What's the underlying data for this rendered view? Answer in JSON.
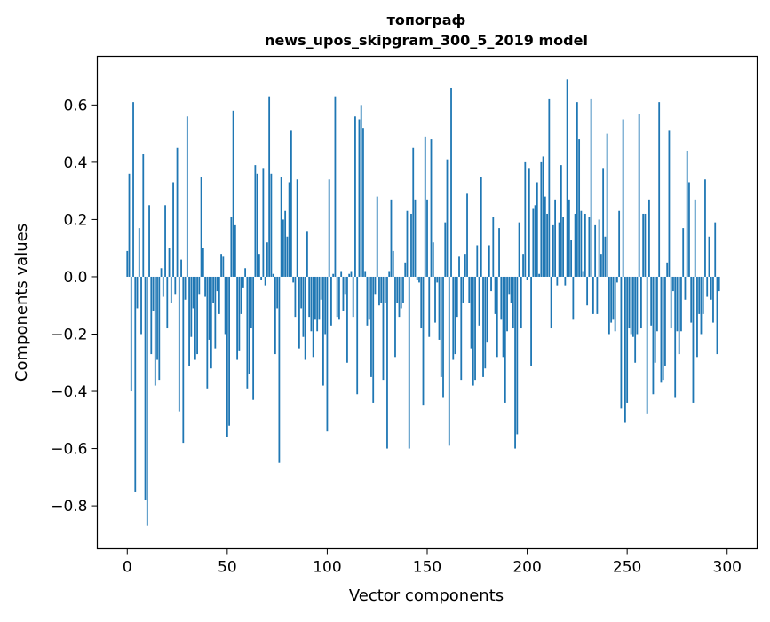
{
  "chart_data": {
    "type": "bar",
    "title_line1": "топограф",
    "title_line2": "news_upos_skipgram_300_5_2019 model",
    "xlabel": "Vector components",
    "ylabel": "Components values",
    "xlim": [
      -15,
      315
    ],
    "ylim": [
      -0.95,
      0.77
    ],
    "xticks": [
      0,
      50,
      100,
      150,
      200,
      250,
      300
    ],
    "xtick_labels": [
      "0",
      "50",
      "100",
      "150",
      "200",
      "250",
      "300"
    ],
    "yticks": [
      -0.8,
      -0.6,
      -0.4,
      -0.2,
      0.0,
      0.2,
      0.4,
      0.6
    ],
    "ytick_labels": [
      "−0.8",
      "−0.6",
      "−0.4",
      "−0.2",
      "0.0",
      "0.2",
      "0.4",
      "0.6"
    ],
    "bar_color": "#1f77b4",
    "grid": false,
    "values": [
      0.09,
      0.36,
      -0.4,
      0.61,
      -0.75,
      -0.11,
      0.17,
      -0.2,
      0.43,
      -0.78,
      -0.87,
      0.25,
      -0.27,
      -0.12,
      -0.38,
      -0.29,
      -0.36,
      0.03,
      -0.07,
      0.25,
      -0.18,
      0.1,
      -0.09,
      0.33,
      -0.06,
      0.45,
      -0.47,
      0.06,
      -0.58,
      -0.08,
      0.56,
      -0.31,
      -0.21,
      -0.11,
      -0.29,
      -0.27,
      -0.06,
      0.35,
      0.1,
      -0.07,
      -0.39,
      -0.22,
      -0.32,
      -0.09,
      -0.25,
      -0.05,
      -0.13,
      0.08,
      0.07,
      -0.2,
      -0.56,
      -0.52,
      0.21,
      0.58,
      0.18,
      -0.29,
      -0.26,
      -0.13,
      -0.04,
      0.03,
      -0.39,
      -0.34,
      -0.18,
      -0.43,
      0.39,
      0.36,
      0.08,
      -0.01,
      0.38,
      -0.03,
      0.12,
      0.63,
      0.36,
      0.01,
      -0.27,
      -0.11,
      -0.65,
      0.35,
      0.2,
      0.23,
      0.14,
      0.33,
      0.51,
      -0.02,
      -0.14,
      0.34,
      -0.25,
      -0.11,
      -0.21,
      -0.29,
      0.16,
      -0.14,
      -0.19,
      -0.28,
      -0.15,
      -0.19,
      -0.15,
      -0.08,
      -0.38,
      -0.2,
      -0.54,
      0.34,
      -0.17,
      0.01,
      0.63,
      -0.14,
      -0.15,
      0.02,
      -0.12,
      -0.06,
      -0.3,
      0.01,
      0.02,
      -0.14,
      0.56,
      -0.41,
      0.55,
      0.6,
      0.52,
      0.02,
      -0.17,
      -0.15,
      -0.35,
      -0.44,
      -0.06,
      0.28,
      -0.1,
      -0.09,
      -0.36,
      -0.09,
      -0.6,
      0.02,
      0.27,
      0.09,
      -0.28,
      -0.09,
      -0.14,
      -0.11,
      -0.09,
      0.05,
      0.23,
      -0.6,
      0.22,
      0.45,
      0.27,
      -0.01,
      -0.02,
      -0.18,
      -0.45,
      0.49,
      0.27,
      -0.21,
      0.48,
      0.12,
      -0.16,
      -0.02,
      -0.22,
      -0.35,
      -0.42,
      0.19,
      0.41,
      -0.59,
      0.66,
      -0.29,
      -0.27,
      -0.14,
      0.07,
      -0.36,
      -0.09,
      0.08,
      0.29,
      -0.09,
      -0.25,
      -0.38,
      -0.36,
      0.11,
      -0.17,
      0.35,
      -0.35,
      -0.32,
      -0.23,
      0.11,
      -0.05,
      0.21,
      -0.13,
      -0.28,
      0.17,
      -0.15,
      -0.28,
      -0.44,
      -0.19,
      -0.06,
      -0.09,
      -0.18,
      -0.6,
      -0.55,
      0.19,
      -0.18,
      0.08,
      0.4,
      -0.01,
      0.38,
      -0.31,
      0.24,
      0.25,
      0.33,
      0.01,
      0.4,
      0.42,
      0.28,
      0.22,
      0.62,
      -0.18,
      0.18,
      0.27,
      -0.03,
      0.19,
      0.39,
      0.21,
      -0.03,
      0.69,
      0.27,
      0.13,
      -0.15,
      0.22,
      0.61,
      0.48,
      0.23,
      0.02,
      0.22,
      -0.1,
      0.21,
      0.62,
      -0.13,
      0.18,
      -0.13,
      0.2,
      0.08,
      0.38,
      0.14,
      0.5,
      -0.2,
      -0.16,
      -0.15,
      -0.19,
      -0.02,
      0.23,
      -0.46,
      0.55,
      -0.51,
      -0.44,
      -0.18,
      -0.2,
      -0.21,
      -0.3,
      -0.2,
      0.57,
      -0.18,
      0.22,
      0.22,
      -0.48,
      0.27,
      -0.17,
      -0.41,
      -0.3,
      -0.19,
      0.61,
      -0.37,
      -0.36,
      -0.31,
      0.05,
      0.51,
      -0.18,
      -0.05,
      -0.42,
      -0.19,
      -0.27,
      -0.19,
      0.17,
      -0.08,
      0.44,
      0.33,
      -0.16,
      -0.44,
      0.27,
      -0.28,
      -0.13,
      -0.2,
      -0.13,
      0.34,
      -0.07,
      0.14,
      -0.08,
      -0.16,
      0.19,
      -0.27,
      -0.05
    ]
  }
}
